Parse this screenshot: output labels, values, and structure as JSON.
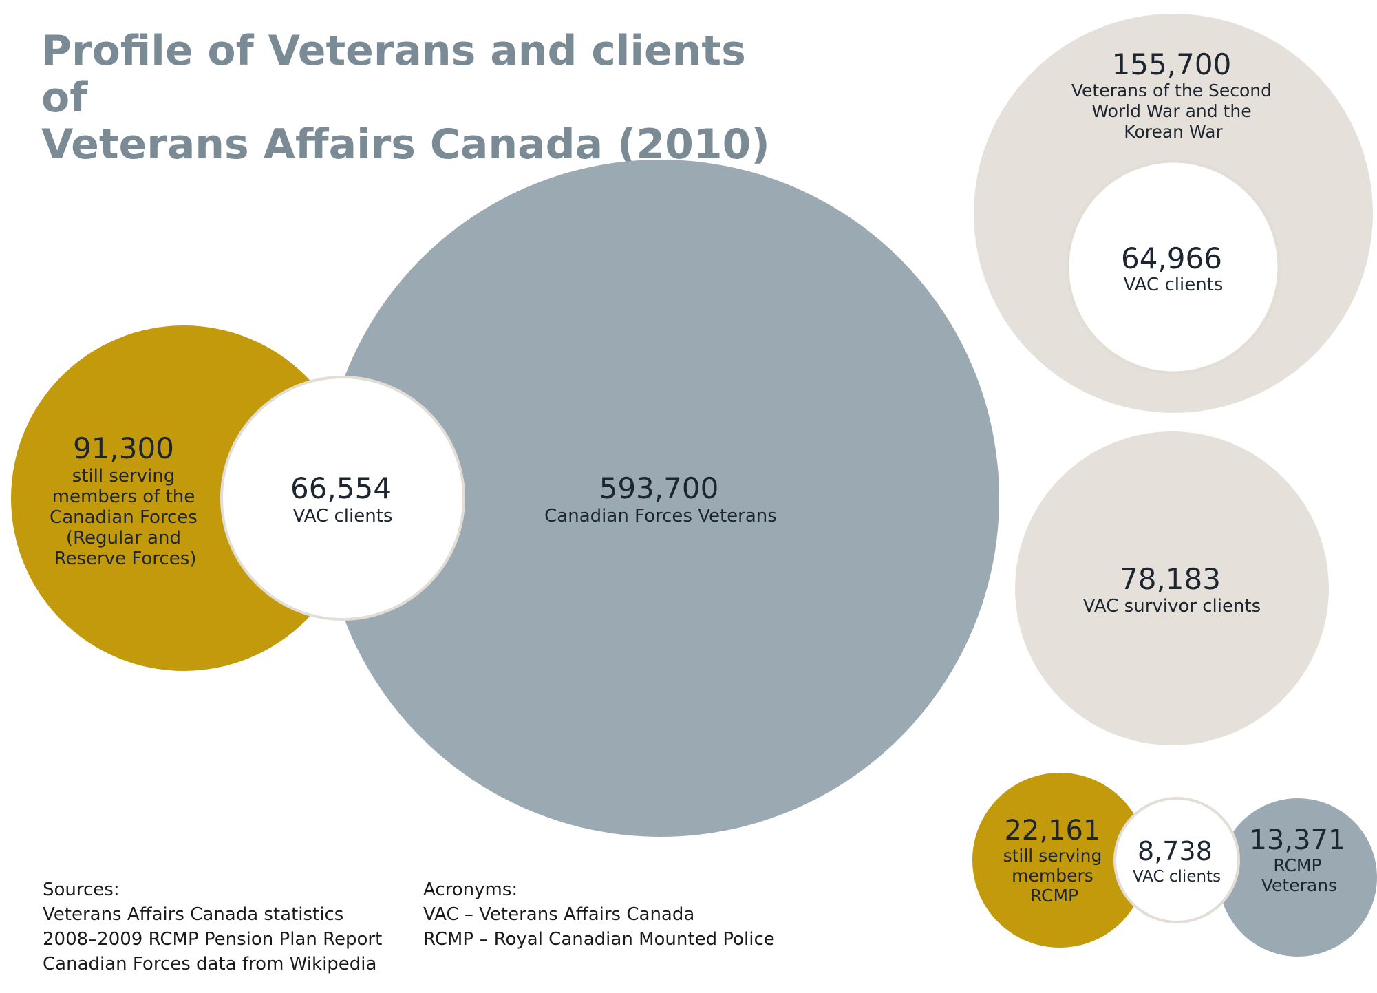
{
  "title": [
    "Profile of Veterans and clients of",
    "Veterans Affairs Canada (2010)"
  ],
  "colors": {
    "gold": "#c39a0c",
    "slate": "#9ba9b3",
    "beige": "#e5e1da",
    "white": "#ffffff",
    "ring": "#e2ded5",
    "title": "#7b8b96",
    "text": "#1c2530"
  },
  "bubbles": {
    "serving_cf": {
      "value": "91,300",
      "label": [
        "still serving",
        "members of the",
        "Canadian Forces",
        "(Regular and",
        "Reserve Forces)"
      ]
    },
    "cf_vac_clients": {
      "value": "66,554",
      "label": [
        "VAC clients"
      ]
    },
    "cf_veterans": {
      "value": "593,700",
      "label": [
        "Canadian Forces Veterans"
      ]
    },
    "ww2_korea": {
      "value": "155,700",
      "label": [
        "Veterans of the Second",
        "World War and the",
        "Korean War"
      ]
    },
    "ww2_vac_clients": {
      "value": "64,966",
      "label": [
        "VAC clients"
      ]
    },
    "survivors": {
      "value": "78,183",
      "label": [
        "VAC survivor clients"
      ]
    },
    "serving_rcmp": {
      "value": "22,161",
      "label": [
        "still serving",
        "members",
        "RCMP"
      ]
    },
    "rcmp_vac_clients": {
      "value": "8,738",
      "label": [
        "VAC clients"
      ]
    },
    "rcmp_veterans": {
      "value": "13,371",
      "label": [
        "RCMP",
        "Veterans"
      ]
    }
  },
  "sources": {
    "heading": "Sources:",
    "items": [
      "Veterans Affairs Canada statistics",
      "2008–2009 RCMP Pension Plan Report",
      "Canadian Forces data from Wikipedia"
    ]
  },
  "acronyms": {
    "heading": "Acronyms:",
    "items": [
      "VAC – Veterans Affairs Canada",
      "RCMP – Royal Canadian Mounted Police"
    ]
  }
}
